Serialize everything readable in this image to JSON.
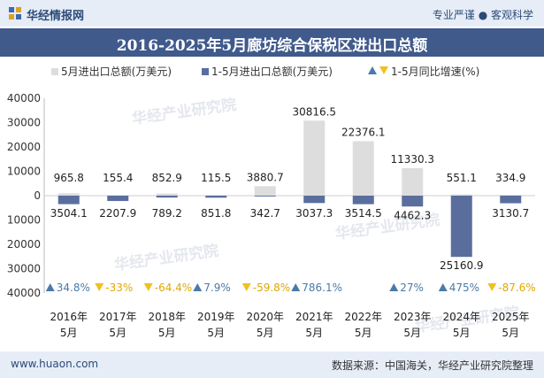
{
  "header": {
    "brand": "华经情报网",
    "slogan": "专业严谨 ● 客观科学"
  },
  "footer": {
    "site": "www.huaon.com",
    "source": "数据来源：中国海关，华经产业研究院整理"
  },
  "watermark": "华经产业研究院",
  "colors": {
    "header_bg": "#e6edf7",
    "title_bg": "#405a8c",
    "may_bar": "#dddddd",
    "ytd_bar": "#5a6e9e",
    "positive": "#4a7aa8",
    "negative": "#f0c020"
  },
  "chart_data": {
    "type": "bar",
    "title": "2016-2025年5月廊坊综合保税区进出口总额",
    "categories": [
      [
        "2016年",
        "5月"
      ],
      [
        "2017年",
        "5月"
      ],
      [
        "2018年",
        "5月"
      ],
      [
        "2019年",
        "5月"
      ],
      [
        "2020年",
        "5月"
      ],
      [
        "2021年",
        "5月"
      ],
      [
        "2022年",
        "5月"
      ],
      [
        "2023年",
        "5月"
      ],
      [
        "2024年",
        "5月"
      ],
      [
        "2025年",
        "5月"
      ]
    ],
    "series": [
      {
        "name": "5月进出口总额(万美元)",
        "direction": "up",
        "values": [
          965.8,
          155.4,
          852.9,
          115.5,
          3880.7,
          30816.5,
          22376.1,
          11330.3,
          551.1,
          334.9
        ],
        "labels": [
          "965.8",
          "155.4",
          "852.9",
          "115.5",
          "3880.7",
          "30816.5",
          "22376.1",
          "11330.3",
          "551.1",
          "334.9"
        ]
      },
      {
        "name": "1-5月进出口总额(万美元)",
        "direction": "down",
        "values": [
          3504.1,
          2207.9,
          789.2,
          851.8,
          342.7,
          3037.3,
          3514.5,
          4462.3,
          25160.9,
          3130.7
        ],
        "labels": [
          "3504.1",
          "2207.9",
          "789.2",
          "851.8",
          "342.7",
          "3037.3",
          "3514.5",
          "4462.3",
          "25160.9",
          "3130.7"
        ]
      }
    ],
    "growth": {
      "name": "1-5月同比增速(%)",
      "values": [
        34.8,
        -33,
        -64.4,
        7.9,
        -59.8,
        786.1,
        null,
        27,
        475,
        -87.6
      ],
      "labels": [
        "34.8%",
        "-33%",
        "-64.4%",
        "7.9%",
        "-59.8%",
        "786.1%",
        "",
        "27%",
        "475%",
        "-87.6%"
      ]
    },
    "y_ticks": [
      {
        "value": 40000,
        "label": "40000"
      },
      {
        "value": 30000,
        "label": "30000"
      },
      {
        "value": 20000,
        "label": "20000"
      },
      {
        "value": 10000,
        "label": "10000"
      },
      {
        "value": 0,
        "label": "0"
      },
      {
        "value": -10000,
        "label": "10000"
      },
      {
        "value": -20000,
        "label": "20000"
      },
      {
        "value": -30000,
        "label": "30000"
      },
      {
        "value": -40000,
        "label": "40000"
      }
    ],
    "ylim": [
      -40000,
      40000
    ],
    "grid": false,
    "legend_position": "top"
  }
}
